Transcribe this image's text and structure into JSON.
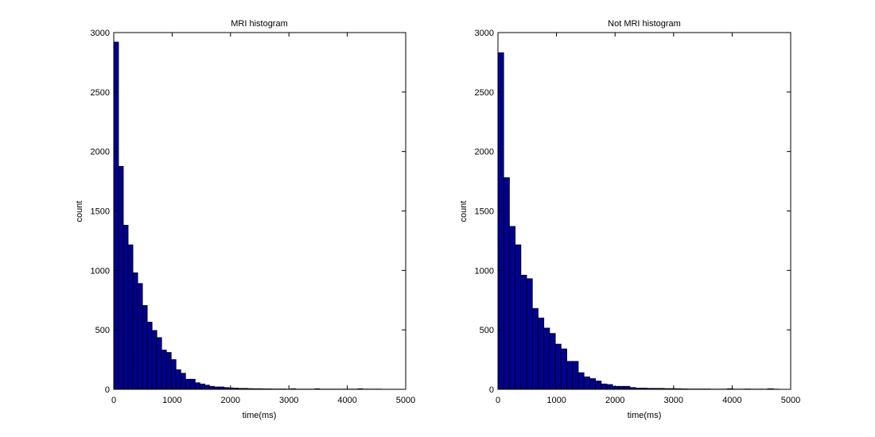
{
  "colors": {
    "bar_fill": "#00008f",
    "bar_edge": "#000000",
    "axes": "#000000",
    "background": "#ffffff"
  },
  "chart_data": [
    {
      "type": "bar",
      "subtype": "histogram",
      "title": "MRI histogram",
      "xlabel": "time(ms)",
      "ylabel": "count",
      "xlim": [
        0,
        5000
      ],
      "ylim": [
        0,
        3000
      ],
      "xticks": [
        0,
        1000,
        2000,
        3000,
        4000,
        5000
      ],
      "yticks": [
        0,
        500,
        1000,
        1500,
        2000,
        2500,
        3000
      ],
      "grid": false,
      "legend": "none",
      "bin_width": 82,
      "bins_start": 0,
      "values": [
        2920,
        1875,
        1380,
        1215,
        980,
        890,
        705,
        565,
        495,
        435,
        330,
        310,
        250,
        165,
        135,
        85,
        85,
        55,
        45,
        35,
        25,
        20,
        20,
        15,
        12,
        10,
        8,
        8,
        6,
        5,
        5,
        4,
        4,
        3,
        3,
        3,
        2,
        5,
        2,
        2,
        2,
        2,
        5,
        2,
        2,
        2,
        2,
        2,
        2,
        2,
        2,
        5,
        2,
        2,
        2,
        2,
        1,
        1,
        1,
        1
      ]
    },
    {
      "type": "bar",
      "subtype": "histogram",
      "title": "Not MRI histogram",
      "xlabel": "time(ms)",
      "ylabel": "count",
      "xlim": [
        0,
        5000
      ],
      "ylim": [
        0,
        3000
      ],
      "xticks": [
        0,
        1000,
        2000,
        3000,
        4000,
        5000
      ],
      "yticks": [
        0,
        500,
        1000,
        1500,
        2000,
        2500,
        3000
      ],
      "grid": false,
      "legend": "none",
      "bin_width": 98,
      "bins_start": 0,
      "values": [
        2830,
        1780,
        1370,
        1215,
        960,
        930,
        680,
        600,
        515,
        470,
        380,
        340,
        235,
        235,
        140,
        105,
        90,
        70,
        45,
        40,
        25,
        25,
        25,
        15,
        10,
        10,
        8,
        8,
        8,
        6,
        6,
        5,
        4,
        3,
        3,
        3,
        3,
        2,
        2,
        2,
        5,
        2,
        2,
        3,
        2,
        2,
        2,
        5,
        2
      ]
    }
  ]
}
